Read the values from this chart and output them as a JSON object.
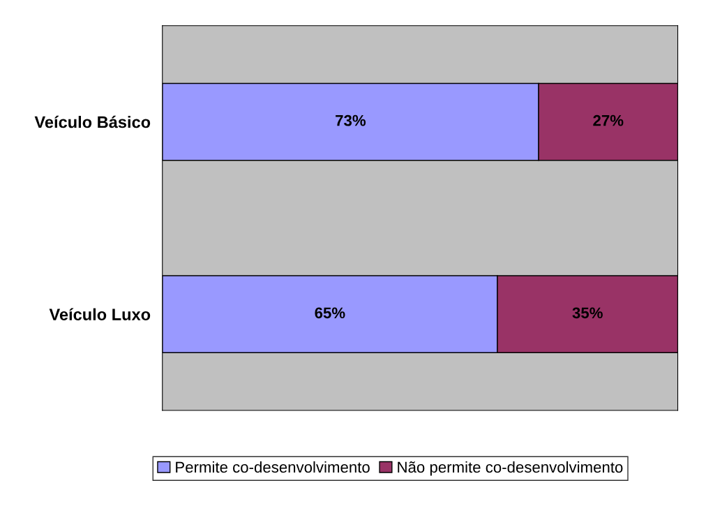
{
  "chart_data": {
    "type": "bar",
    "orientation": "horizontal",
    "stacked": true,
    "categories": [
      "Veículo Básico",
      "Veículo Luxo"
    ],
    "series": [
      {
        "name": "Permite co-desenvolvimento",
        "color": "#9999ff",
        "values": [
          73,
          65
        ],
        "value_labels": [
          "73%",
          "65%"
        ]
      },
      {
        "name": "Não permite co-desenvolvimento",
        "color": "#993366",
        "values": [
          27,
          35
        ],
        "value_labels": [
          "27%",
          "35%"
        ]
      }
    ],
    "legend": "bottom"
  }
}
